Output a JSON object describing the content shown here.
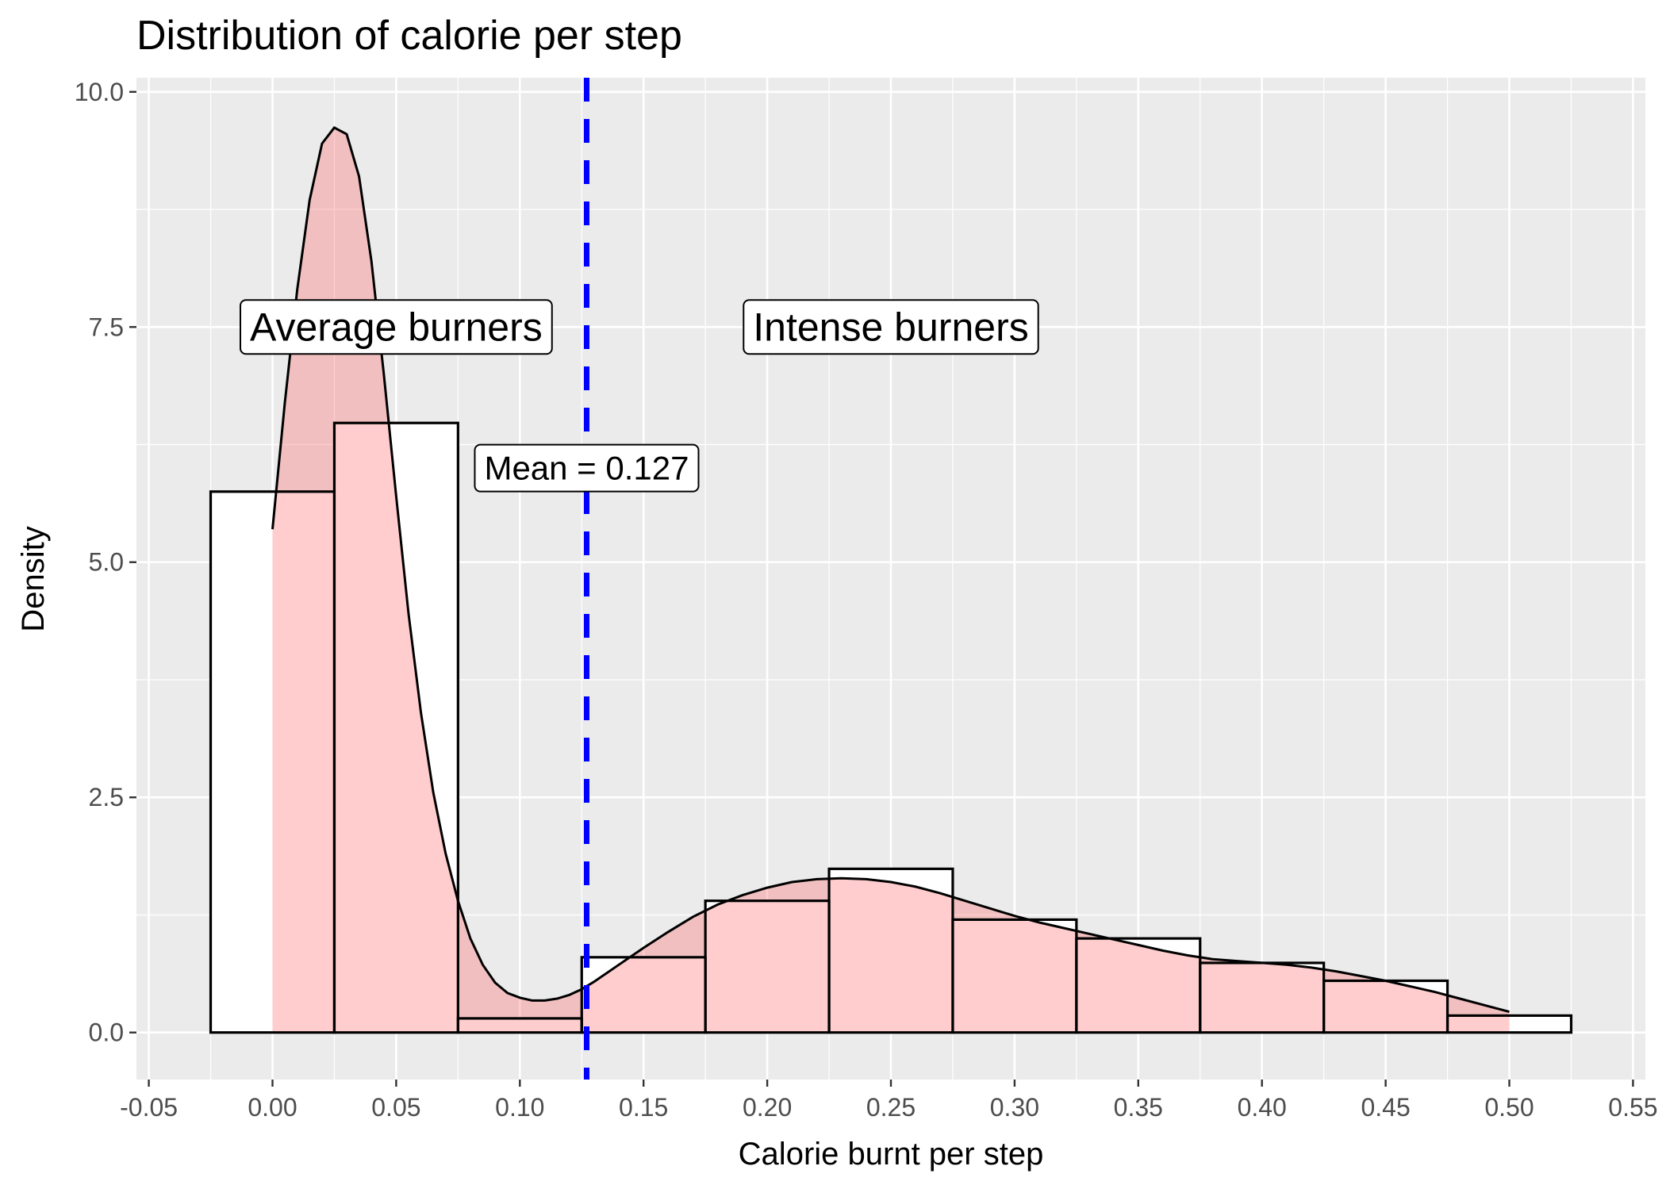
{
  "chart_data": {
    "type": "histogram",
    "title": "Distribution of calorie per step",
    "xlabel": "Calorie burnt per step",
    "ylabel": "Density",
    "xlim": [
      -0.055,
      0.555
    ],
    "ylim": [
      -0.5,
      10.0
    ],
    "x_ticks": [
      -0.05,
      0.0,
      0.05,
      0.1,
      0.15,
      0.2,
      0.25,
      0.3,
      0.35,
      0.4,
      0.45,
      0.5,
      0.55
    ],
    "x_tick_labels": [
      "-0.05",
      "0.00",
      "0.05",
      "0.10",
      "0.15",
      "0.20",
      "0.25",
      "0.30",
      "0.35",
      "0.40",
      "0.45",
      "0.50",
      "0.55"
    ],
    "y_ticks": [
      0.0,
      2.5,
      5.0,
      7.5,
      10.0
    ],
    "y_tick_labels": [
      "0.0",
      "2.5",
      "5.0",
      "7.5",
      "10.0"
    ],
    "grid": true,
    "bins": [
      {
        "x0": -0.025,
        "x1": 0.025,
        "density": 5.75
      },
      {
        "x0": 0.025,
        "x1": 0.075,
        "density": 6.48
      },
      {
        "x0": 0.075,
        "x1": 0.125,
        "density": 0.15
      },
      {
        "x0": 0.125,
        "x1": 0.175,
        "density": 0.8
      },
      {
        "x0": 0.175,
        "x1": 0.225,
        "density": 1.4
      },
      {
        "x0": 0.225,
        "x1": 0.275,
        "density": 1.74
      },
      {
        "x0": 0.275,
        "x1": 0.325,
        "density": 1.2
      },
      {
        "x0": 0.325,
        "x1": 0.375,
        "density": 1.0
      },
      {
        "x0": 0.375,
        "x1": 0.425,
        "density": 0.74
      },
      {
        "x0": 0.425,
        "x1": 0.475,
        "density": 0.55
      },
      {
        "x0": 0.475,
        "x1": 0.525,
        "density": 0.18
      }
    ],
    "density_curve": {
      "x": [
        0.0,
        0.005,
        0.01,
        0.015,
        0.02,
        0.025,
        0.03,
        0.035,
        0.04,
        0.045,
        0.05,
        0.055,
        0.06,
        0.065,
        0.07,
        0.075,
        0.08,
        0.085,
        0.09,
        0.095,
        0.1,
        0.105,
        0.11,
        0.115,
        0.12,
        0.125,
        0.13,
        0.14,
        0.15,
        0.16,
        0.17,
        0.18,
        0.19,
        0.2,
        0.21,
        0.22,
        0.23,
        0.24,
        0.25,
        0.26,
        0.27,
        0.28,
        0.29,
        0.3,
        0.31,
        0.32,
        0.33,
        0.34,
        0.35,
        0.36,
        0.37,
        0.38,
        0.39,
        0.4,
        0.41,
        0.42,
        0.43,
        0.44,
        0.45,
        0.46,
        0.47,
        0.48,
        0.49,
        0.5
      ],
      "y": [
        5.35,
        6.7,
        7.9,
        8.85,
        9.45,
        9.62,
        9.55,
        9.1,
        8.2,
        7.0,
        5.7,
        4.45,
        3.4,
        2.55,
        1.9,
        1.4,
        1.0,
        0.72,
        0.53,
        0.42,
        0.37,
        0.34,
        0.34,
        0.36,
        0.4,
        0.46,
        0.54,
        0.72,
        0.9,
        1.07,
        1.23,
        1.36,
        1.46,
        1.54,
        1.6,
        1.63,
        1.64,
        1.63,
        1.6,
        1.55,
        1.48,
        1.4,
        1.32,
        1.24,
        1.17,
        1.11,
        1.05,
        0.99,
        0.93,
        0.87,
        0.82,
        0.78,
        0.76,
        0.74,
        0.72,
        0.69,
        0.65,
        0.6,
        0.55,
        0.49,
        0.43,
        0.36,
        0.29,
        0.22
      ]
    },
    "mean_line": {
      "x": 0.127,
      "color": "#0000ff",
      "style": "dashed"
    },
    "annotations": [
      {
        "text": "Average burners",
        "x": 0.05,
        "y": 7.5
      },
      {
        "text": "Intense burners",
        "x": 0.25,
        "y": 7.5
      },
      {
        "text": "Mean = 0.127",
        "x": 0.127,
        "y": 6.0
      }
    ],
    "colors": {
      "panel_background": "#ebebeb",
      "grid_major": "#ffffff",
      "histogram_fill": "#ffffff",
      "histogram_outline": "#000000",
      "density_fill": "#ff6666",
      "density_outline": "#000000",
      "mean_line": "#0000ff",
      "tick_label": "#4d4d4d"
    }
  }
}
